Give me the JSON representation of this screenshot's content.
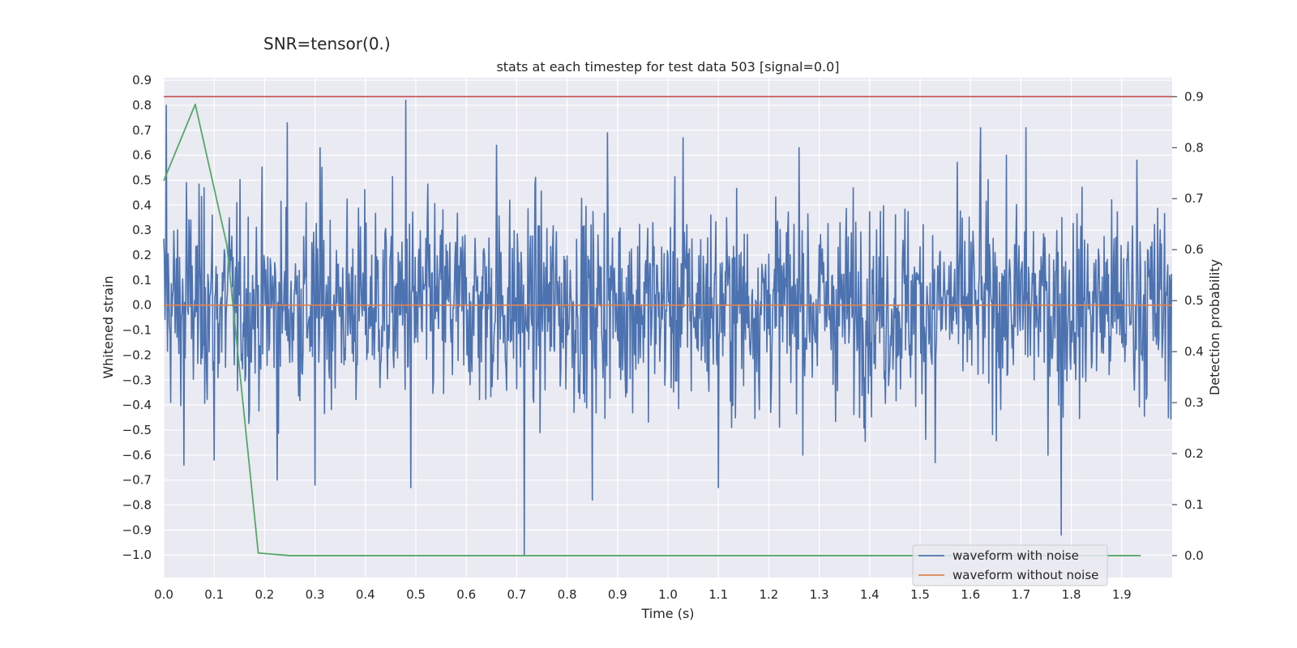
{
  "suptitle": "SNR=tensor(0.)",
  "chart_data": {
    "type": "line",
    "title": "stats at each timestep for test data 503 [signal=0.0]",
    "xlabel": "Time (s)",
    "ylabel": "Whitened strain",
    "y2label": "Detection probability",
    "xlim": [
      0.0,
      2.0
    ],
    "ylim": [
      -1.09,
      0.91
    ],
    "y2lim": [
      -0.043,
      0.937
    ],
    "x_ticks": [
      "0.0",
      "0.1",
      "0.2",
      "0.3",
      "0.4",
      "0.5",
      "0.6",
      "0.7",
      "0.8",
      "0.9",
      "1.0",
      "1.1",
      "1.2",
      "1.3",
      "1.4",
      "1.5",
      "1.6",
      "1.7",
      "1.8",
      "1.9"
    ],
    "y_ticks": [
      "0.9",
      "0.8",
      "0.7",
      "0.6",
      "0.5",
      "0.4",
      "0.3",
      "0.2",
      "0.1",
      "0.0",
      "−0.1",
      "−0.2",
      "−0.3",
      "−0.4",
      "−0.5",
      "−0.6",
      "−0.7",
      "−0.8",
      "−0.9",
      "−1.0"
    ],
    "y2_ticks": [
      "0.9",
      "0.8",
      "0.7",
      "0.6",
      "0.5",
      "0.4",
      "0.3",
      "0.2",
      "0.1",
      "0.0"
    ],
    "grid": true,
    "legend_position": "lower-right",
    "series": [
      {
        "name": "waveform with noise",
        "color": "#4c72b0",
        "axis": "left",
        "description": "dense noise, roughly between -0.7 and 0.8",
        "peaks": [
          [
            0.005,
            0.8
          ],
          [
            0.045,
            0.49
          ],
          [
            0.08,
            0.47
          ],
          [
            0.13,
            0.35
          ],
          [
            0.245,
            0.73
          ],
          [
            0.31,
            0.63
          ],
          [
            0.48,
            0.82
          ],
          [
            0.66,
            0.64
          ],
          [
            0.88,
            0.69
          ],
          [
            1.03,
            0.67
          ],
          [
            1.26,
            0.63
          ],
          [
            1.62,
            0.71
          ],
          [
            1.71,
            0.71
          ],
          [
            1.93,
            0.58
          ]
        ],
        "troughs": [
          [
            0.04,
            -0.64
          ],
          [
            0.1,
            -0.62
          ],
          [
            0.225,
            -0.7
          ],
          [
            0.3,
            -0.72
          ],
          [
            0.49,
            -0.73
          ],
          [
            0.715,
            -1.0
          ],
          [
            0.85,
            -0.78
          ],
          [
            1.1,
            -0.73
          ],
          [
            1.53,
            -0.63
          ],
          [
            1.78,
            -0.92
          ]
        ]
      },
      {
        "name": "waveform without noise",
        "color": "#dd8452",
        "axis": "left",
        "x": [
          0.0,
          2.0
        ],
        "y": [
          0.0,
          0.0
        ]
      },
      {
        "name": "",
        "color": "#55a868",
        "axis": "right",
        "x": [
          0.0,
          0.0625,
          0.125,
          0.1875,
          0.25,
          0.3125,
          0.375,
          0.4375,
          0.5,
          0.5625,
          0.625,
          0.6875,
          0.75,
          0.8125,
          0.875,
          0.9375,
          1.0,
          1.0625,
          1.125,
          1.1875,
          1.25,
          1.3125,
          1.375,
          1.4375,
          1.5,
          1.5625,
          1.625,
          1.6875,
          1.75,
          1.8125,
          1.875,
          1.9375
        ],
        "y": [
          0.735,
          0.885,
          0.61,
          0.005,
          0.0,
          0.0,
          0.0,
          0.0,
          0.0,
          0.0,
          0.0,
          0.0,
          0.0,
          0.0,
          0.0,
          0.0,
          0.0,
          0.0,
          0.0,
          0.0,
          0.0,
          0.0,
          0.0,
          0.0,
          0.0,
          0.0,
          0.0,
          0.0,
          0.0,
          0.0,
          0.0,
          0.0
        ]
      }
    ],
    "threshold": {
      "color": "#c44e52",
      "axis": "right",
      "value": 0.9
    }
  }
}
